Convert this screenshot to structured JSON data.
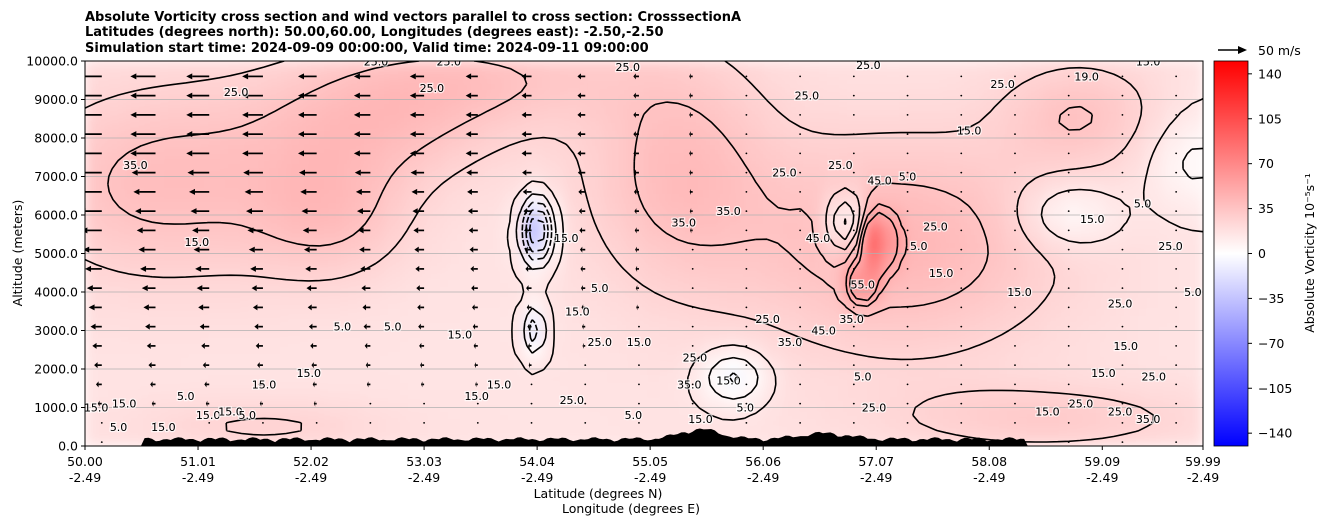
{
  "chart_data": {
    "type": "heatmap",
    "title_lines": [
      "Absolute Vorticity cross section and wind vectors parallel to cross section: CrosssectionA",
      "Latitudes (degrees north): 50.00,60.00, Longitudes (degrees east): -2.50,-2.50",
      "Simulation start time: 2024-09-09 00:00:00, Valid time: 2024-09-11 09:00:00"
    ],
    "xlabel": "Latitude (degrees N)",
    "xlabel2": "Longitude (degrees E)",
    "ylabel": "Altitude (meters)",
    "xlim": [
      50.0,
      59.99
    ],
    "ylim": [
      0,
      10000
    ],
    "x_ticks": [
      {
        "value": 50.0,
        "lat": "50.00",
        "lon": "-2.49"
      },
      {
        "value": 51.01,
        "lat": "51.01",
        "lon": "-2.49"
      },
      {
        "value": 52.02,
        "lat": "52.02",
        "lon": "-2.49"
      },
      {
        "value": 53.03,
        "lat": "53.03",
        "lon": "-2.49"
      },
      {
        "value": 54.04,
        "lat": "54.04",
        "lon": "-2.49"
      },
      {
        "value": 55.05,
        "lat": "55.05",
        "lon": "-2.49"
      },
      {
        "value": 56.06,
        "lat": "56.06",
        "lon": "-2.49"
      },
      {
        "value": 57.07,
        "lat": "57.07",
        "lon": "-2.49"
      },
      {
        "value": 58.08,
        "lat": "58.08",
        "lon": "-2.49"
      },
      {
        "value": 59.09,
        "lat": "59.09",
        "lon": "-2.49"
      },
      {
        "value": 59.99,
        "lat": "59.99",
        "lon": "-2.49"
      }
    ],
    "y_ticks": [
      {
        "value": 0,
        "label": "0.0"
      },
      {
        "value": 1000,
        "label": "1000.0"
      },
      {
        "value": 2000,
        "label": "2000.0"
      },
      {
        "value": 3000,
        "label": "3000.0"
      },
      {
        "value": 4000,
        "label": "4000.0"
      },
      {
        "value": 5000,
        "label": "5000.0"
      },
      {
        "value": 6000,
        "label": "6000.0"
      },
      {
        "value": 7000,
        "label": "7000.0"
      },
      {
        "value": 8000,
        "label": "8000.0"
      },
      {
        "value": 9000,
        "label": "9000.0"
      },
      {
        "value": 10000,
        "label": "10000.0"
      }
    ],
    "grid": "horizontal",
    "colorbar": {
      "label": "Absolute Vorticity 10⁻⁵s⁻¹",
      "range": [
        -150,
        150
      ],
      "ticks": [
        {
          "value": 140,
          "label": "140"
        },
        {
          "value": 105,
          "label": "105"
        },
        {
          "value": 70,
          "label": "70"
        },
        {
          "value": 35,
          "label": "35"
        },
        {
          "value": 0,
          "label": "0"
        },
        {
          "value": -35,
          "label": "−35"
        },
        {
          "value": -70,
          "label": "−70"
        },
        {
          "value": -105,
          "label": "−105"
        },
        {
          "value": -140,
          "label": "−140"
        }
      ],
      "colors": {
        "low": "#0000ff",
        "mid": "#ffffff",
        "high": "#ff0000"
      }
    },
    "quiver_key": {
      "label": "50 m/s",
      "speed": 50
    },
    "field": {
      "background": 16,
      "blobs": [
        {
          "x": 50.7,
          "y": 6800,
          "sx": 0.9,
          "sy": 1800,
          "v": 22
        },
        {
          "x": 52.2,
          "y": 6000,
          "sx": 0.5,
          "sy": 1200,
          "v": 18
        },
        {
          "x": 52.6,
          "y": 8400,
          "sx": 0.8,
          "sy": 1200,
          "v": 20
        },
        {
          "x": 53.6,
          "y": 9600,
          "sx": 0.9,
          "sy": 900,
          "v": 16
        },
        {
          "x": 55.3,
          "y": 7200,
          "sx": 0.6,
          "sy": 2200,
          "v": 22
        },
        {
          "x": 57.3,
          "y": 5200,
          "sx": 1.0,
          "sy": 2000,
          "v": 26
        },
        {
          "x": 58.9,
          "y": 8600,
          "sx": 0.5,
          "sy": 1000,
          "v": 18
        },
        {
          "x": 54.04,
          "y": 5600,
          "sx": 0.1,
          "sy": 600,
          "v": -55
        },
        {
          "x": 54.02,
          "y": 3000,
          "sx": 0.07,
          "sy": 450,
          "v": -28
        },
        {
          "x": 56.8,
          "y": 5800,
          "sx": 0.12,
          "sy": 550,
          "v": -35
        },
        {
          "x": 56.95,
          "y": 4200,
          "sx": 0.08,
          "sy": 350,
          "v": 45
        },
        {
          "x": 57.08,
          "y": 5300,
          "sx": 0.1,
          "sy": 500,
          "v": 55
        },
        {
          "x": 55.8,
          "y": 1800,
          "sx": 0.2,
          "sy": 500,
          "v": -25
        },
        {
          "x": 58.8,
          "y": 6000,
          "sx": 0.3,
          "sy": 600,
          "v": -18
        },
        {
          "x": 59.9,
          "y": 7400,
          "sx": 0.3,
          "sy": 900,
          "v": -14
        },
        {
          "x": 51.6,
          "y": 500,
          "sx": 0.8,
          "sy": 500,
          "v": 10
        },
        {
          "x": 58.6,
          "y": 700,
          "sx": 1.0,
          "sy": 600,
          "v": 14
        }
      ]
    },
    "contour_labels": [
      {
        "x": 53.25,
        "y": 9990,
        "text": "25.0"
      },
      {
        "x": 52.6,
        "y": 9990,
        "text": "25.0"
      },
      {
        "x": 54.85,
        "y": 9850,
        "text": "25.0"
      },
      {
        "x": 51.35,
        "y": 9200,
        "text": "25.0"
      },
      {
        "x": 53.1,
        "y": 9300,
        "text": "25.0"
      },
      {
        "x": 57.0,
        "y": 9900,
        "text": "25.0"
      },
      {
        "x": 56.45,
        "y": 9100,
        "text": "25.0"
      },
      {
        "x": 58.95,
        "y": 9600,
        "text": "19.0"
      },
      {
        "x": 59.5,
        "y": 9990,
        "text": "15.0"
      },
      {
        "x": 58.2,
        "y": 9400,
        "text": "25.0"
      },
      {
        "x": 57.9,
        "y": 8200,
        "text": "15.0"
      },
      {
        "x": 50.45,
        "y": 7300,
        "text": "35.0"
      },
      {
        "x": 51.0,
        "y": 5300,
        "text": "15.0"
      },
      {
        "x": 55.35,
        "y": 5800,
        "text": "35.0"
      },
      {
        "x": 55.75,
        "y": 6100,
        "text": "35.0"
      },
      {
        "x": 56.25,
        "y": 7100,
        "text": "25.0"
      },
      {
        "x": 56.55,
        "y": 5400,
        "text": "45.0"
      },
      {
        "x": 56.75,
        "y": 7300,
        "text": "25.0"
      },
      {
        "x": 57.1,
        "y": 6900,
        "text": "45.0"
      },
      {
        "x": 57.35,
        "y": 7000,
        "text": "5.0"
      },
      {
        "x": 57.6,
        "y": 5700,
        "text": "25.0"
      },
      {
        "x": 57.65,
        "y": 4500,
        "text": "15.0"
      },
      {
        "x": 57.45,
        "y": 5200,
        "text": "5.0"
      },
      {
        "x": 58.35,
        "y": 4000,
        "text": "15.0"
      },
      {
        "x": 59.0,
        "y": 5900,
        "text": "15.0"
      },
      {
        "x": 59.45,
        "y": 6300,
        "text": "5.0"
      },
      {
        "x": 59.7,
        "y": 5200,
        "text": "25.0"
      },
      {
        "x": 59.9,
        "y": 4000,
        "text": "5.0"
      },
      {
        "x": 59.25,
        "y": 3700,
        "text": "25.0"
      },
      {
        "x": 59.3,
        "y": 2600,
        "text": "15.0"
      },
      {
        "x": 59.1,
        "y": 1900,
        "text": "15.0"
      },
      {
        "x": 59.55,
        "y": 1800,
        "text": "25.0"
      },
      {
        "x": 53.35,
        "y": 2900,
        "text": "15.0"
      },
      {
        "x": 52.75,
        "y": 3100,
        "text": "5.0"
      },
      {
        "x": 52.3,
        "y": 3100,
        "text": "5.0"
      },
      {
        "x": 52.0,
        "y": 1900,
        "text": "15.0"
      },
      {
        "x": 54.3,
        "y": 5400,
        "text": "15.0"
      },
      {
        "x": 54.4,
        "y": 3500,
        "text": "15.0"
      },
      {
        "x": 54.6,
        "y": 4100,
        "text": "5.0"
      },
      {
        "x": 54.6,
        "y": 2700,
        "text": "25.0"
      },
      {
        "x": 54.95,
        "y": 2700,
        "text": "15.0"
      },
      {
        "x": 55.4,
        "y": 1600,
        "text": "35.0"
      },
      {
        "x": 55.45,
        "y": 2300,
        "text": "25.0"
      },
      {
        "x": 55.75,
        "y": 1700,
        "text": "15.0"
      },
      {
        "x": 55.9,
        "y": 1000,
        "text": "5.0"
      },
      {
        "x": 56.1,
        "y": 3300,
        "text": "25.0"
      },
      {
        "x": 56.3,
        "y": 2700,
        "text": "35.0"
      },
      {
        "x": 56.6,
        "y": 3000,
        "text": "45.0"
      },
      {
        "x": 56.85,
        "y": 3300,
        "text": "35.0"
      },
      {
        "x": 56.95,
        "y": 4200,
        "text": "55.0"
      },
      {
        "x": 56.95,
        "y": 1800,
        "text": "5.0"
      },
      {
        "x": 57.05,
        "y": 1000,
        "text": "25.0"
      },
      {
        "x": 50.9,
        "y": 1300,
        "text": "5.0"
      },
      {
        "x": 50.35,
        "y": 1100,
        "text": "15.0"
      },
      {
        "x": 50.1,
        "y": 1000,
        "text": "15.0"
      },
      {
        "x": 50.3,
        "y": 500,
        "text": "5.0"
      },
      {
        "x": 50.7,
        "y": 500,
        "text": "15.0"
      },
      {
        "x": 51.1,
        "y": 800,
        "text": "15.0"
      },
      {
        "x": 51.3,
        "y": 900,
        "text": "15.0"
      },
      {
        "x": 51.45,
        "y": 800,
        "text": "5.0"
      },
      {
        "x": 51.6,
        "y": 1600,
        "text": "15.0"
      },
      {
        "x": 53.7,
        "y": 1600,
        "text": "15.0"
      },
      {
        "x": 53.5,
        "y": 1300,
        "text": "15.0"
      },
      {
        "x": 54.35,
        "y": 1200,
        "text": "25.0"
      },
      {
        "x": 54.9,
        "y": 800,
        "text": "5.0"
      },
      {
        "x": 55.5,
        "y": 700,
        "text": "15.0"
      },
      {
        "x": 58.6,
        "y": 900,
        "text": "15.0"
      },
      {
        "x": 58.9,
        "y": 1100,
        "text": "25.0"
      },
      {
        "x": 59.25,
        "y": 900,
        "text": "25.0"
      },
      {
        "x": 59.5,
        "y": 700,
        "text": "35.0"
      }
    ]
  }
}
